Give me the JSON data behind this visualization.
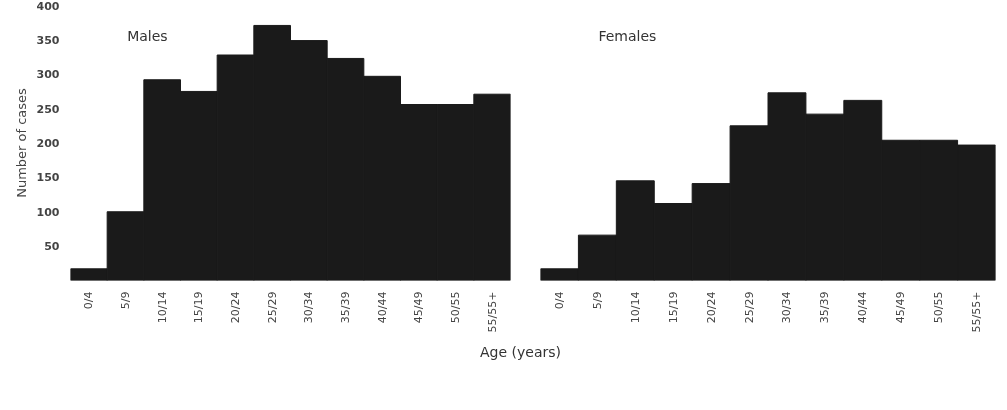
{
  "chart_data": [
    {
      "type": "bar",
      "title": "Males",
      "ylabel": "Number of cases",
      "xlabel": "Age (years)",
      "categories": [
        "0/4",
        "5/9",
        "10/14",
        "15/19",
        "20/24",
        "25/29",
        "30/34",
        "35/39",
        "40/44",
        "45/49",
        "50/55",
        "55/55+"
      ],
      "values": [
        17,
        100,
        292,
        275,
        328,
        371,
        349,
        323,
        297,
        256,
        256,
        271
      ],
      "color": "#1a1a1a",
      "ylim": [
        0,
        400
      ],
      "yticks": [
        50,
        100,
        150,
        200,
        250,
        300,
        350,
        400
      ],
      "grid": false
    },
    {
      "type": "bar",
      "title": "Females",
      "categories": [
        "0/4",
        "5/9",
        "10/14",
        "15/19",
        "20/24",
        "25/29",
        "30/34",
        "35/39",
        "40/44",
        "45/49",
        "50/55",
        "55/55+"
      ],
      "values": [
        17,
        66,
        145,
        112,
        141,
        225,
        273,
        242,
        262,
        204,
        204,
        197
      ],
      "color": "#1a1a1a",
      "ylim": [
        0,
        400
      ],
      "yticks": [
        50,
        100,
        150,
        200,
        250,
        300,
        350,
        400
      ],
      "grid": false,
      "tick_labels": "x"
    }
  ]
}
